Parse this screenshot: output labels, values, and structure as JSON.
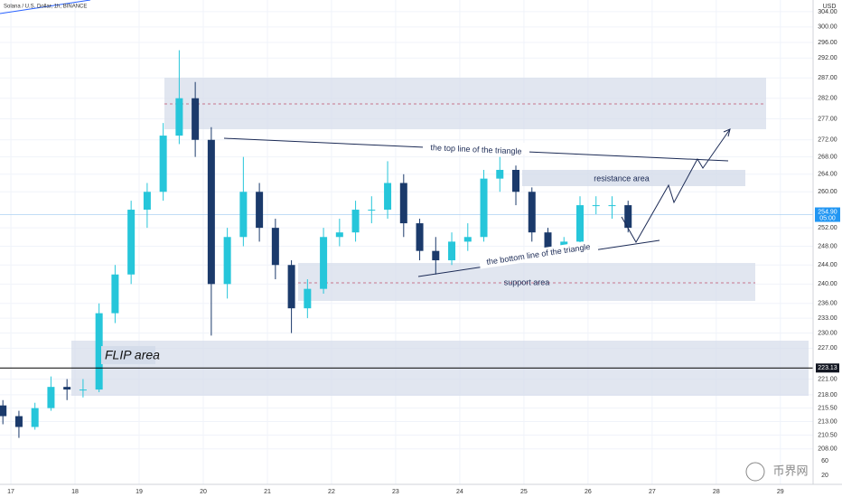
{
  "chart_data": {
    "type": "candlestick",
    "title": "Solana / U.S. Dollar, 1h, BINANCE",
    "currency": "USD",
    "log_scale": true,
    "up_color": "#26c6da",
    "down_color": "#1b3a6b",
    "x": [
      16.875,
      17.125,
      17.375,
      17.625,
      17.875,
      18.125,
      18.375,
      18.625,
      18.875,
      19.125,
      19.375,
      19.625,
      19.875,
      20.125,
      20.375,
      20.625,
      20.875,
      21.125,
      21.375,
      21.625,
      21.875,
      22.125,
      22.375,
      22.625,
      22.875,
      23.125,
      23.375,
      23.625,
      23.875,
      24.125,
      24.375,
      24.625,
      24.875,
      25.125,
      25.375,
      25.625,
      25.875,
      26.125,
      26.375,
      26.625
    ],
    "open": [
      216,
      214,
      212,
      215.5,
      219.5,
      219,
      219,
      234,
      242,
      256,
      260,
      273,
      282,
      272,
      240,
      250,
      260,
      252,
      244,
      235,
      239,
      250,
      251,
      256,
      256,
      262,
      253,
      247,
      245,
      249,
      250,
      263,
      265,
      260,
      251,
      247,
      249,
      257,
      257,
      257
    ],
    "high": [
      217,
      215,
      216.5,
      221.5,
      221,
      221,
      236,
      244,
      258,
      262,
      276,
      294,
      286,
      275,
      252,
      268,
      262,
      254,
      245,
      241,
      252,
      254,
      258,
      259,
      267,
      264,
      254,
      250,
      251,
      253,
      265,
      268,
      266,
      261,
      252,
      250,
      259,
      259,
      259,
      258
    ],
    "low": [
      212.5,
      210,
      211.5,
      215,
      217,
      217.5,
      218.5,
      232,
      240,
      252,
      258,
      271,
      268,
      229.5,
      237,
      248,
      249,
      241,
      230,
      233,
      238,
      248,
      249,
      253,
      254,
      250,
      245,
      242,
      244,
      247,
      249,
      260,
      257,
      249,
      246,
      246,
      248,
      255,
      254,
      251
    ],
    "close": [
      214,
      212,
      215.5,
      219.5,
      219,
      219,
      234,
      242,
      256,
      260,
      273,
      282,
      272,
      240,
      250,
      260,
      252,
      244,
      235,
      239,
      250,
      251,
      256,
      256,
      262,
      253,
      247,
      245,
      249,
      250,
      263,
      265,
      260,
      251,
      247,
      249,
      257,
      257,
      257,
      252
    ],
    "xlim": [
      16.83,
      29.51
    ],
    "xticks": [
      17,
      18,
      19,
      20,
      21,
      22,
      23,
      24,
      25,
      26,
      27,
      28,
      29
    ],
    "ylim": [
      201.7,
      307.1
    ],
    "yticks": [
      {
        "value": 304,
        "label": "304.00"
      },
      {
        "value": 300,
        "label": "300.00"
      },
      {
        "value": 296,
        "label": "296.00"
      },
      {
        "value": 292,
        "label": "292.00"
      },
      {
        "value": 287,
        "label": "287.00"
      },
      {
        "value": 282,
        "label": "282.00"
      },
      {
        "value": 277,
        "label": "277.00"
      },
      {
        "value": 272,
        "label": "272.00"
      },
      {
        "value": 268,
        "label": "268.00"
      },
      {
        "value": 264,
        "label": "264.00"
      },
      {
        "value": 260,
        "label": "260.00"
      },
      {
        "value": 252,
        "label": "252.00"
      },
      {
        "value": 248,
        "label": "248.00"
      },
      {
        "value": 244,
        "label": "244.00"
      },
      {
        "value": 240,
        "label": "240.00"
      },
      {
        "value": 236,
        "label": "236.00"
      },
      {
        "value": 233,
        "label": "233.00"
      },
      {
        "value": 230,
        "label": "230.00"
      },
      {
        "value": 227,
        "label": "227.00"
      },
      {
        "value": 221,
        "label": "221.00"
      },
      {
        "value": 218,
        "label": "218.00"
      },
      {
        "value": 215.5,
        "label": "215.50"
      },
      {
        "value": 213,
        "label": "213.00"
      },
      {
        "value": 210.5,
        "label": "210.50"
      },
      {
        "value": 208,
        "label": "208.00"
      }
    ],
    "last_price": {
      "value": 254.9,
      "label": "254.90"
    },
    "countdown": "05:00",
    "hline": {
      "value": 223.13,
      "label": "223.13"
    },
    "volume_axis_labels": [
      "60",
      "20"
    ],
    "annotations": {
      "top_line": "the top line of the triangle",
      "bottom_line": "the bottom line of the triangle",
      "resistance": "resistance area",
      "support": "support area",
      "flip": "FLIP area"
    },
    "watermark": "币界网"
  }
}
